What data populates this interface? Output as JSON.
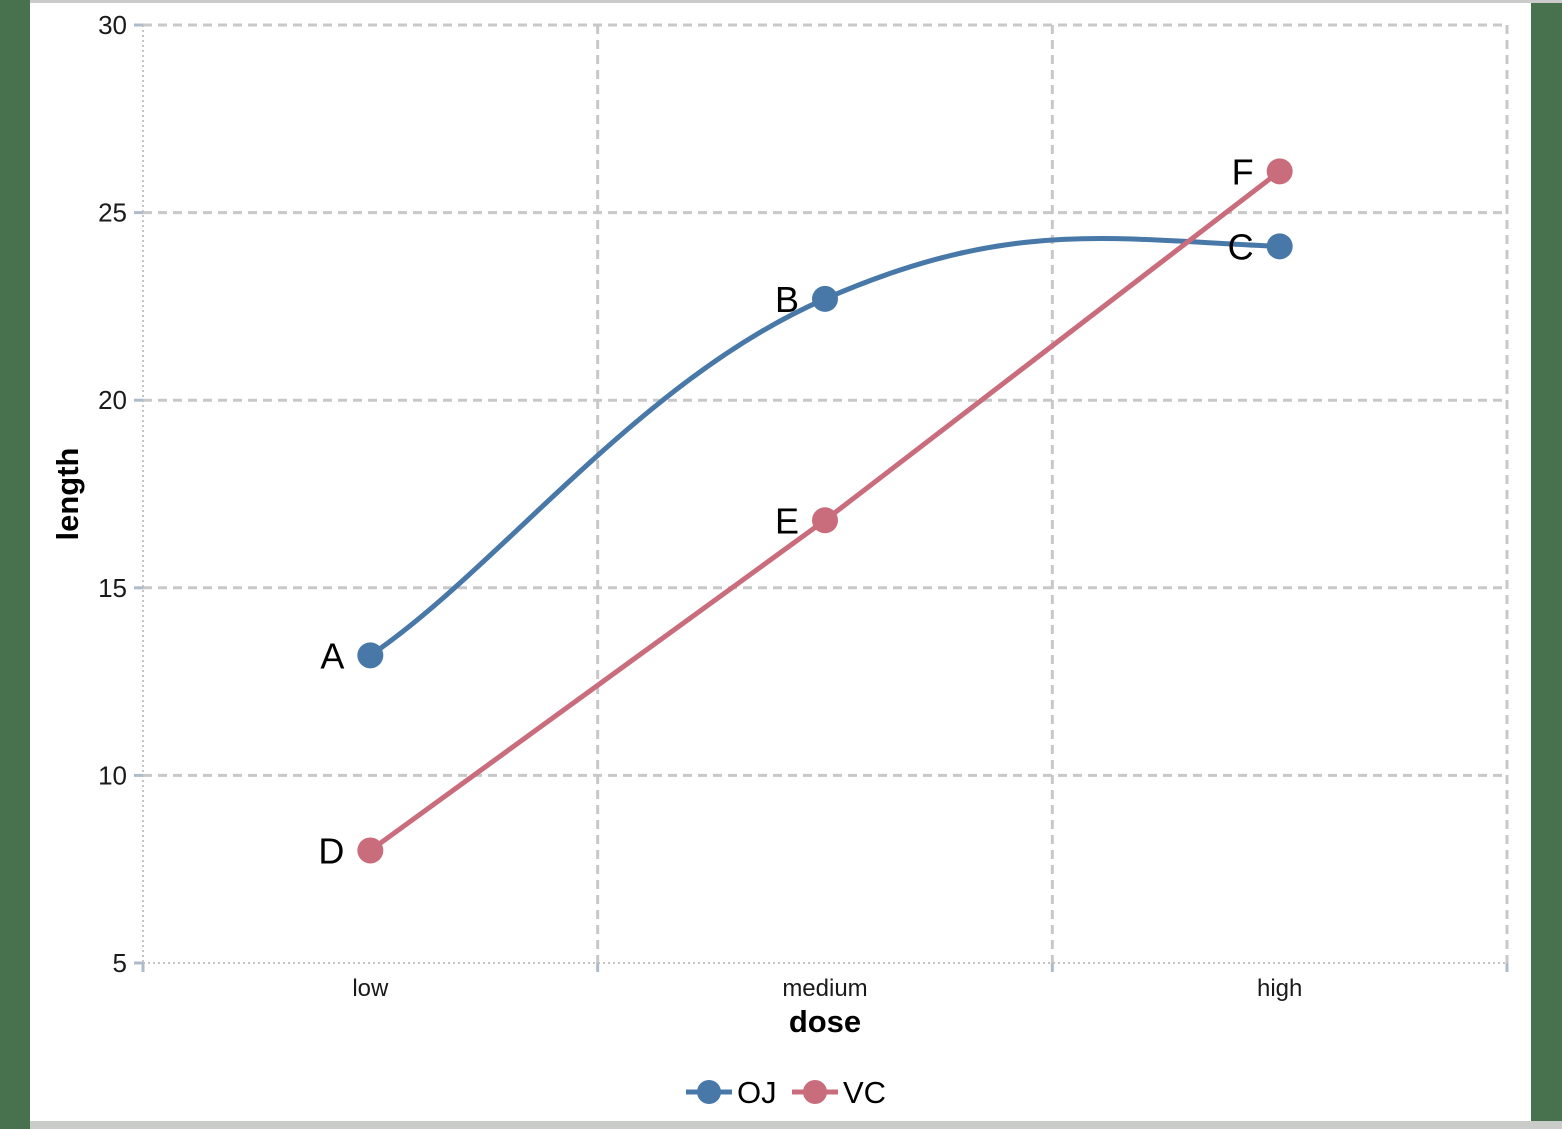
{
  "page": {
    "background_color": "#48724E",
    "canvas_color": "#FFFFFF",
    "top_strip_color": "#CBCBCB",
    "bottom_strip_color": "#C9CCC9"
  },
  "chart_data": {
    "type": "line",
    "title": "",
    "xlabel": "dose",
    "ylabel": "length",
    "categories": [
      "low",
      "medium",
      "high"
    ],
    "series": [
      {
        "name": "OJ",
        "values": [
          13.2,
          22.7,
          24.1
        ],
        "point_labels": [
          "A",
          "B",
          "C"
        ],
        "color": "#4878A8",
        "smooth": true
      },
      {
        "name": "VC",
        "values": [
          8.0,
          16.8,
          26.1
        ],
        "point_labels": [
          "D",
          "E",
          "F"
        ],
        "color": "#C96D7C",
        "smooth": false
      }
    ],
    "y_ticks": [
      5,
      10,
      15,
      20,
      25,
      30
    ],
    "ylim": [
      5,
      30
    ],
    "grid": {
      "horizontal": "dashed at every y tick",
      "vertical": "dashed at category boundaries and right edge",
      "color": "#C8C8C8"
    },
    "axis_line_color": "#C4C4C4",
    "tick_mark_color": "#AEBBC9",
    "legend_position": "bottom-center",
    "legend": [
      {
        "label": "OJ",
        "color": "#4878A8"
      },
      {
        "label": "VC",
        "color": "#C96D7C"
      }
    ]
  }
}
